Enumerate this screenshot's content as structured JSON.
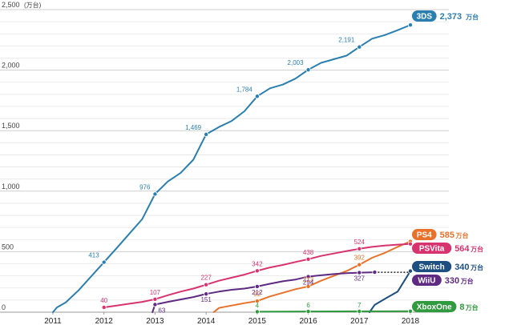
{
  "chart_data": {
    "type": "line",
    "y_unit": "(万台)",
    "ylim": [
      0,
      2500
    ],
    "y_ticks": [
      {
        "value": 0,
        "label": "0"
      },
      {
        "value": 500,
        "label": "500"
      },
      {
        "value": 1000,
        "label": "1,000"
      },
      {
        "value": 1500,
        "label": "1,500"
      },
      {
        "value": 2000,
        "label": "2,000"
      },
      {
        "value": 2500,
        "label": "2,500"
      }
    ],
    "xlim": [
      2010.75,
      2018.2
    ],
    "x_ticks": [
      "2011",
      "2012",
      "2013",
      "2014",
      "2015",
      "2016",
      "2017",
      "2018"
    ],
    "grid": true,
    "series": [
      {
        "name": "3DS",
        "final_value": "2,373",
        "final_unit": "万台",
        "color": "#2a7fb0",
        "points": [
          [
            2011.0,
            0
          ],
          [
            2011.08,
            40
          ],
          [
            2011.25,
            80
          ],
          [
            2011.5,
            180
          ],
          [
            2012.0,
            413
          ],
          [
            2012.25,
            530
          ],
          [
            2012.5,
            650
          ],
          [
            2012.75,
            770
          ],
          [
            2013.0,
            976
          ],
          [
            2013.25,
            1080
          ],
          [
            2013.5,
            1150
          ],
          [
            2013.75,
            1260
          ],
          [
            2014.0,
            1469
          ],
          [
            2014.25,
            1530
          ],
          [
            2014.5,
            1580
          ],
          [
            2014.75,
            1660
          ],
          [
            2015.0,
            1784
          ],
          [
            2015.25,
            1850
          ],
          [
            2015.5,
            1880
          ],
          [
            2015.75,
            1930
          ],
          [
            2016.0,
            2003
          ],
          [
            2016.25,
            2060
          ],
          [
            2016.5,
            2090
          ],
          [
            2016.75,
            2120
          ],
          [
            2017.0,
            2191
          ],
          [
            2017.25,
            2260
          ],
          [
            2017.5,
            2290
          ],
          [
            2017.75,
            2330
          ],
          [
            2018.0,
            2373
          ]
        ],
        "labels": [
          {
            "x": 2012.0,
            "y": 413,
            "text": "413"
          },
          {
            "x": 2013.0,
            "y": 976,
            "text": "976"
          },
          {
            "x": 2014.0,
            "y": 1469,
            "text": "1,469"
          },
          {
            "x": 2015.0,
            "y": 1784,
            "text": "1,784"
          },
          {
            "x": 2016.0,
            "y": 2003,
            "text": "2,003"
          },
          {
            "x": 2017.0,
            "y": 2191,
            "text": "2,191"
          }
        ]
      },
      {
        "name": "PS4",
        "final_value": "585",
        "final_unit": "万台",
        "color": "#e8722a",
        "points": [
          [
            2014.15,
            0
          ],
          [
            2014.25,
            35
          ],
          [
            2014.5,
            55
          ],
          [
            2014.75,
            75
          ],
          [
            2015.0,
            92
          ],
          [
            2015.25,
            130
          ],
          [
            2015.5,
            160
          ],
          [
            2015.75,
            190
          ],
          [
            2016.0,
            213
          ],
          [
            2016.25,
            260
          ],
          [
            2016.5,
            300
          ],
          [
            2016.75,
            340
          ],
          [
            2017.0,
            392
          ],
          [
            2017.25,
            450
          ],
          [
            2017.5,
            490
          ],
          [
            2017.75,
            540
          ],
          [
            2018.0,
            585
          ]
        ],
        "labels": [
          {
            "x": 2015.0,
            "y": 92,
            "text": "92"
          },
          {
            "x": 2016.0,
            "y": 213,
            "text": "213"
          },
          {
            "x": 2017.0,
            "y": 392,
            "text": "392"
          }
        ]
      },
      {
        "name": "PSVita",
        "final_value": "564",
        "final_unit": "万台",
        "color": "#d8336e",
        "points": [
          [
            2012.0,
            40
          ],
          [
            2012.25,
            55
          ],
          [
            2012.5,
            70
          ],
          [
            2012.75,
            85
          ],
          [
            2013.0,
            107
          ],
          [
            2013.25,
            140
          ],
          [
            2013.5,
            170
          ],
          [
            2013.75,
            195
          ],
          [
            2014.0,
            227
          ],
          [
            2014.25,
            260
          ],
          [
            2014.5,
            285
          ],
          [
            2014.75,
            310
          ],
          [
            2015.0,
            342
          ],
          [
            2015.25,
            370
          ],
          [
            2015.5,
            390
          ],
          [
            2015.75,
            415
          ],
          [
            2016.0,
            438
          ],
          [
            2016.25,
            465
          ],
          [
            2016.5,
            485
          ],
          [
            2016.75,
            505
          ],
          [
            2017.0,
            524
          ],
          [
            2017.25,
            540
          ],
          [
            2017.5,
            550
          ],
          [
            2017.75,
            558
          ],
          [
            2018.0,
            564
          ]
        ],
        "labels": [
          {
            "x": 2012.0,
            "y": 40,
            "text": "40"
          },
          {
            "x": 2013.0,
            "y": 107,
            "text": "107"
          },
          {
            "x": 2014.0,
            "y": 227,
            "text": "227"
          },
          {
            "x": 2015.0,
            "y": 342,
            "text": "342"
          },
          {
            "x": 2016.0,
            "y": 438,
            "text": "438"
          },
          {
            "x": 2017.0,
            "y": 524,
            "text": "524"
          }
        ]
      },
      {
        "name": "Switch",
        "final_value": "340",
        "final_unit": "万台",
        "color": "#1d4f80",
        "points": [
          [
            2017.2,
            0
          ],
          [
            2017.3,
            60
          ],
          [
            2017.5,
            110
          ],
          [
            2017.75,
            170
          ],
          [
            2018.0,
            340
          ]
        ],
        "labels": []
      },
      {
        "name": "WiiU",
        "final_value": "330",
        "final_unit": "万台",
        "color": "#5e2a82",
        "points": [
          [
            2012.95,
            0
          ],
          [
            2013.0,
            63
          ],
          [
            2013.25,
            85
          ],
          [
            2013.5,
            105
          ],
          [
            2013.75,
            125
          ],
          [
            2014.0,
            151
          ],
          [
            2014.25,
            170
          ],
          [
            2014.5,
            185
          ],
          [
            2014.75,
            195
          ],
          [
            2015.0,
            212
          ],
          [
            2015.25,
            235
          ],
          [
            2015.5,
            255
          ],
          [
            2015.75,
            270
          ],
          [
            2016.0,
            294
          ],
          [
            2016.25,
            305
          ],
          [
            2016.5,
            315
          ],
          [
            2016.75,
            322
          ],
          [
            2017.0,
            327
          ],
          [
            2017.3,
            330
          ]
        ],
        "extension": [
          [
            2017.3,
            330
          ],
          [
            2018.0,
            330
          ]
        ],
        "labels": [
          {
            "x": 2013.0,
            "y": 63,
            "text": "63"
          },
          {
            "x": 2014.0,
            "y": 151,
            "text": "151"
          },
          {
            "x": 2015.0,
            "y": 212,
            "text": "212"
          },
          {
            "x": 2016.0,
            "y": 294,
            "text": "294"
          },
          {
            "x": 2017.0,
            "y": 327,
            "text": "327"
          }
        ]
      },
      {
        "name": "XboxOne",
        "final_value": "8",
        "final_unit": "万台",
        "color": "#2f9a3e",
        "points": [
          [
            2015.0,
            4
          ],
          [
            2015.5,
            5
          ],
          [
            2016.0,
            6
          ],
          [
            2016.5,
            6.5
          ],
          [
            2017.0,
            7
          ],
          [
            2017.5,
            7.5
          ],
          [
            2018.0,
            8
          ]
        ],
        "labels": [
          {
            "x": 2015.0,
            "y": 4,
            "text": "4"
          },
          {
            "x": 2016.0,
            "y": 6,
            "text": "6"
          },
          {
            "x": 2017.0,
            "y": 7,
            "text": "7"
          }
        ]
      }
    ],
    "legend": [
      {
        "badge": "3DS",
        "series": "3DS"
      },
      {
        "badge": "PS4",
        "series": "PS4"
      },
      {
        "badge": "PSVita",
        "series": "PSVita"
      },
      {
        "badge": "Switch",
        "series": "Switch"
      },
      {
        "badge": "WiiU",
        "series": "WiiU"
      },
      {
        "badge": "XboxOne",
        "series": "XboxOne"
      }
    ]
  }
}
